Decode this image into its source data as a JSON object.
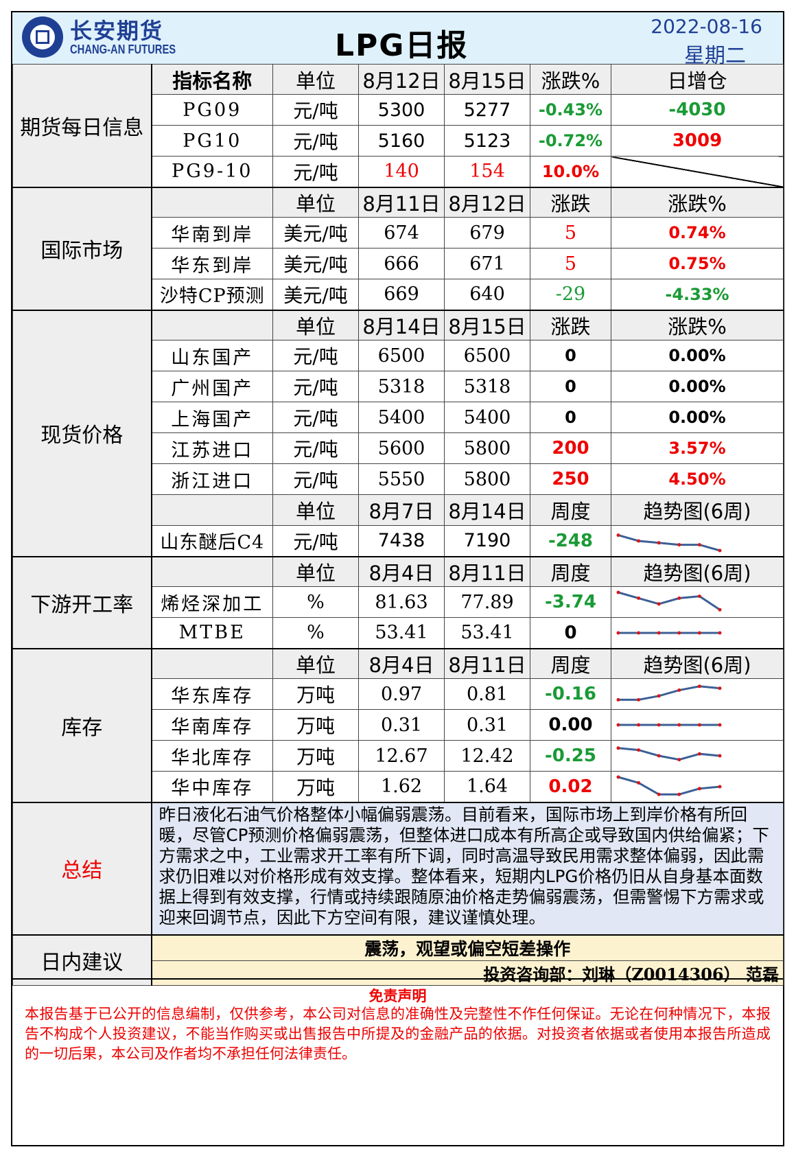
{
  "header": {
    "company_cn": "长安期货",
    "company_en": "CHANG-AN FUTURES",
    "title": "LPG日报",
    "date": "2022-08-16",
    "weekday": "星期二"
  },
  "futures": {
    "section": "期货每日信息",
    "headers": [
      "指标名称",
      "单位",
      "8月12日",
      "8月15日",
      "涨跌%",
      "日增仓"
    ],
    "rows": [
      {
        "name": "PG09",
        "unit": "元/吨",
        "v1": "5300",
        "v2": "5277",
        "chg": "-0.43%",
        "oi": "-4030"
      },
      {
        "name": "PG10",
        "unit": "元/吨",
        "v1": "5160",
        "v2": "5123",
        "chg": "-0.72%",
        "oi": "3009"
      },
      {
        "name": "PG9-10",
        "unit": "元/吨",
        "v1": "140",
        "v2": "154",
        "chg": "10.0%",
        "oi": ""
      }
    ]
  },
  "intl": {
    "section": "国际市场",
    "headers": [
      "",
      "单位",
      "8月11日",
      "8月12日",
      "涨跌",
      "涨跌%"
    ],
    "rows": [
      {
        "name": "华南到岸",
        "unit": "美元/吨",
        "v1": "674",
        "v2": "679",
        "chg": "5",
        "pct": "0.74%"
      },
      {
        "name": "华东到岸",
        "unit": "美元/吨",
        "v1": "666",
        "v2": "671",
        "chg": "5",
        "pct": "0.75%"
      },
      {
        "name": "沙特CP预测",
        "unit": "美元/吨",
        "v1": "669",
        "v2": "640",
        "chg": "-29",
        "pct": "-4.33%"
      }
    ]
  },
  "spot": {
    "section": "现货价格",
    "headers": [
      "",
      "单位",
      "8月14日",
      "8月15日",
      "涨跌",
      "涨跌%"
    ],
    "rows": [
      {
        "name": "山东国产",
        "unit": "元/吨",
        "v1": "6500",
        "v2": "6500",
        "chg": "0",
        "pct": "0.00%"
      },
      {
        "name": "广州国产",
        "unit": "元/吨",
        "v1": "5318",
        "v2": "5318",
        "chg": "0",
        "pct": "0.00%"
      },
      {
        "name": "上海国产",
        "unit": "元/吨",
        "v1": "5400",
        "v2": "5400",
        "chg": "0",
        "pct": "0.00%"
      },
      {
        "name": "江苏进口",
        "unit": "元/吨",
        "v1": "5600",
        "v2": "5800",
        "chg": "200",
        "pct": "3.57%"
      },
      {
        "name": "浙江进口",
        "unit": "元/吨",
        "v1": "5550",
        "v2": "5800",
        "chg": "250",
        "pct": "4.50%"
      }
    ],
    "headers2": [
      "",
      "单位",
      "8月7日",
      "8月14日",
      "周度",
      "趋势图(6周)"
    ],
    "c4": {
      "name": "山东醚后C4",
      "unit": "元/吨",
      "v1": "7438",
      "v2": "7190",
      "chg": "-248",
      "trend": [
        8,
        5,
        4,
        3,
        3,
        0
      ]
    }
  },
  "downstream": {
    "section": "下游开工率",
    "headers": [
      "",
      "单位",
      "8月4日",
      "8月11日",
      "周度",
      "趋势图(6周)"
    ],
    "rows": [
      {
        "name": "烯烃深加工",
        "unit": "%",
        "v1": "81.63",
        "v2": "77.89",
        "chg": "-3.74",
        "trend": [
          10,
          7,
          4,
          7,
          8,
          1
        ]
      },
      {
        "name": "MTBE",
        "unit": "%",
        "v1": "53.41",
        "v2": "53.41",
        "chg": "0",
        "trend": [
          5,
          5,
          5,
          5,
          5,
          5
        ]
      }
    ]
  },
  "inventory": {
    "section": "库存",
    "headers": [
      "",
      "单位",
      "8月4日",
      "8月11日",
      "周度",
      "趋势图(6周)"
    ],
    "rows": [
      {
        "name": "华东库存",
        "unit": "万吨",
        "v1": "0.97",
        "v2": "0.81",
        "chg": "-0.16",
        "trend": [
          2,
          2,
          4,
          7,
          9,
          8
        ]
      },
      {
        "name": "华南库存",
        "unit": "万吨",
        "v1": "0.31",
        "v2": "0.31",
        "chg": "0.00",
        "trend": [
          5,
          5,
          5,
          5,
          5,
          5
        ]
      },
      {
        "name": "华北库存",
        "unit": "万吨",
        "v1": "12.67",
        "v2": "12.42",
        "chg": "-0.25",
        "trend": [
          9,
          8,
          5,
          3,
          6,
          5
        ]
      },
      {
        "name": "华中库存",
        "unit": "万吨",
        "v1": "1.62",
        "v2": "1.64",
        "chg": "0.02",
        "trend": [
          10,
          7,
          1,
          1,
          4,
          5
        ]
      }
    ]
  },
  "summary": {
    "section": "总结",
    "text": "昨日液化石油气价格整体小幅偏弱震荡。目前看来，国际市场上到岸价格有所回暖，尽管CP预测价格偏弱震荡，但整体进口成本有所高企或导致国内供给偏紧；下方需求之中，工业需求开工率有所下调，同时高温导致民用需求整体偏弱，因此需求仍旧难以对价格形成有效支撑。整体看来，短期内LPG价格仍旧从自身基本面数据上得到有效支撑，行情或持续跟随原油价格走势偏弱震荡，但需警惕下方需求或迎来回调节点，因此下方空间有限，建议谨慎处理。"
  },
  "advice": {
    "section": "日内建议",
    "text": "震荡，观望或偏空短差操作",
    "advisor": "投资咨询部：刘琳（Z0014306） 范磊"
  },
  "disclaimer": {
    "title": "免责声明",
    "text": "本报告基于已公开的信息编制，仅供参考，本公司对信息的准确性及完整性不作任何保证。无论在何种情况下，本报告不构成个人投资建议，不能当作购买或出售报告中所提及的金融产品的依据。对投资者依据或者使用本报告所造成的一切后果，本公司及作者均不承担任何法律责任。"
  },
  "colors": {
    "up": "#e00000",
    "down": "#1a9a35",
    "trend_line": "#3b5f95",
    "trend_dot": "#d81818"
  }
}
